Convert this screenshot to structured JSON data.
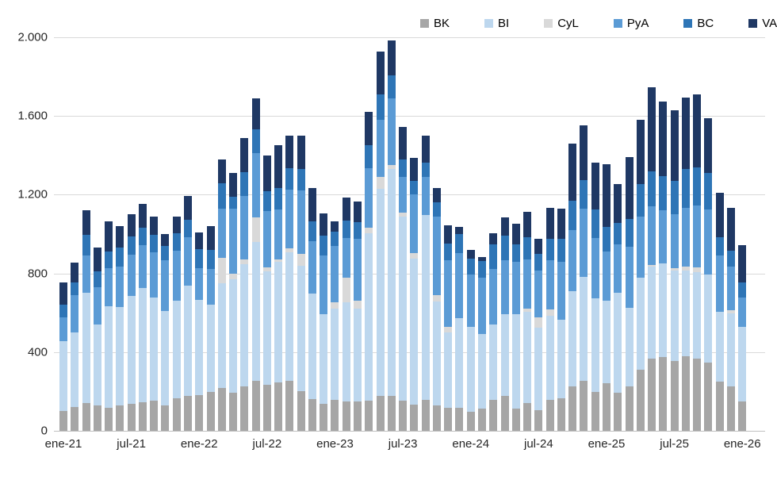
{
  "legend": {
    "items": [
      {
        "label": "BK",
        "color": "#a6a6a6"
      },
      {
        "label": "BI",
        "color": "#bdd7ee"
      },
      {
        "label": "CyL",
        "color": "#d9d9d9"
      },
      {
        "label": "PyA",
        "color": "#5b9bd5"
      },
      {
        "label": "BC",
        "color": "#2e75b6"
      },
      {
        "label": "VA",
        "color": "#1f3864"
      }
    ]
  },
  "y_axis": {
    "tick_labels": [
      "0",
      "400",
      "800",
      "1.200",
      "1.600",
      "2.000"
    ],
    "tick_values": [
      0,
      400,
      800,
      1200,
      1600,
      2000
    ]
  },
  "x_axis": {
    "tick_every": 6,
    "tick_labels": [
      "ene-21",
      "jul-21",
      "ene-22",
      "jul-22",
      "ene-23",
      "jul-23",
      "ene-24",
      "jul-24",
      "ene-25",
      "jul-25",
      "ene-26"
    ]
  },
  "chart_data": {
    "type": "bar",
    "stacked": true,
    "title": "",
    "xlabel": "",
    "ylabel": "",
    "ylim": [
      0,
      2000
    ],
    "grid": true,
    "legend_position": "top",
    "categories": [
      "ene-21",
      "feb-21",
      "mar-21",
      "abr-21",
      "may-21",
      "jun-21",
      "jul-21",
      "ago-21",
      "sep-21",
      "oct-21",
      "nov-21",
      "dic-21",
      "ene-22",
      "feb-22",
      "mar-22",
      "abr-22",
      "may-22",
      "jun-22",
      "jul-22",
      "ago-22",
      "sep-22",
      "oct-22",
      "nov-22",
      "dic-22",
      "ene-23",
      "feb-23",
      "mar-23",
      "abr-23",
      "may-23",
      "jun-23",
      "jul-23",
      "ago-23",
      "sep-23",
      "oct-23",
      "nov-23",
      "dic-23",
      "ene-24",
      "feb-24",
      "mar-24",
      "abr-24",
      "may-24",
      "jun-24",
      "jul-24",
      "ago-24",
      "sep-24",
      "oct-24",
      "nov-24",
      "dic-24",
      "ene-25",
      "feb-25",
      "mar-25",
      "abr-25",
      "may-25",
      "jun-25",
      "jul-25",
      "ago-25",
      "sep-25",
      "oct-25",
      "nov-25",
      "dic-25",
      "ene-26"
    ],
    "series": [
      {
        "name": "BK",
        "color": "#a6a6a6",
        "values": [
          100,
          120,
          142,
          131,
          117,
          131,
          138,
          145,
          152,
          131,
          165,
          179,
          181,
          199,
          219,
          192,
          226,
          253,
          233,
          246,
          253,
          200,
          163,
          136,
          156,
          150,
          150,
          155,
          179,
          179,
          152,
          134,
          158,
          131,
          117,
          118,
          95,
          113,
          156,
          176,
          113,
          142,
          104,
          156,
          165,
          226,
          253,
          199,
          240,
          192,
          226,
          310,
          367,
          374,
          354,
          381,
          367,
          347,
          252,
          225,
          151
        ]
      },
      {
        "name": "BI",
        "color": "#bdd7ee",
        "values": [
          355,
          382,
          560,
          410,
          516,
          498,
          546,
          580,
          525,
          478,
          498,
          559,
          483,
          441,
          531,
          578,
          619,
          708,
          578,
          613,
          653,
          640,
          535,
          458,
          465,
          505,
          471,
          850,
          1049,
          1152,
          938,
          741,
          939,
          526,
          383,
          456,
          434,
          380,
          386,
          417,
          480,
          464,
          421,
          430,
          401,
          483,
          531,
          476,
          421,
          510,
          401,
          470,
          468,
          475,
          461,
          434,
          441,
          448,
          353,
          373,
          379
        ]
      },
      {
        "name": "CyL",
        "color": "#d9d9d9",
        "values": [
          0,
          0,
          0,
          0,
          0,
          0,
          0,
          0,
          0,
          0,
          0,
          0,
          0,
          0,
          129,
          27,
          27,
          122,
          20,
          14,
          20,
          60,
          0,
          0,
          34,
          125,
          40,
          27,
          62,
          21,
          20,
          27,
          0,
          34,
          27,
          0,
          0,
          0,
          0,
          0,
          0,
          15,
          51,
          30,
          0,
          0,
          0,
          0,
          0,
          0,
          0,
          0,
          7,
          0,
          13,
          20,
          21,
          0,
          0,
          14,
          0
        ]
      },
      {
        "name": "PyA",
        "color": "#5b9bd5",
        "values": [
          121,
          188,
          190,
          187,
          194,
          205,
          211,
          218,
          232,
          260,
          253,
          246,
          163,
          181,
          252,
          334,
          320,
          327,
          285,
          252,
          300,
          320,
          267,
          296,
          283,
          198,
          317,
          303,
          289,
          338,
          180,
          298,
          193,
          399,
          341,
          330,
          264,
          285,
          281,
          275,
          268,
          251,
          238,
          251,
          293,
          313,
          347,
          306,
          252,
          245,
          307,
          310,
          298,
          271,
          272,
          299,
          318,
          332,
          285,
          223,
          149
        ]
      },
      {
        "name": "BC",
        "color": "#2e75b6",
        "values": [
          66,
          65,
          105,
          82,
          85,
          96,
          93,
          89,
          89,
          71,
          88,
          89,
          96,
          99,
          129,
          60,
          123,
          123,
          102,
          109,
          110,
          110,
          101,
          101,
          74,
          90,
          81,
          115,
          131,
          117,
          90,
          69,
          75,
          70,
          82,
          95,
          82,
          85,
          126,
          126,
          88,
          111,
          85,
          109,
          116,
          146,
          143,
          143,
          123,
          109,
          143,
          165,
          177,
          176,
          169,
          196,
          190,
          183,
          94,
          82,
          75
        ]
      },
      {
        "name": "VA",
        "color": "#1f3864",
        "values": [
          113,
          100,
          123,
          120,
          153,
          110,
          112,
          123,
          92,
          60,
          84,
          120,
          87,
          120,
          120,
          119,
          175,
          157,
          182,
          216,
          164,
          170,
          168,
          115,
          54,
          119,
          105,
          170,
          217,
          179,
          165,
          117,
          134,
          75,
          95,
          36,
          45,
          22,
          57,
          91,
          105,
          129,
          77,
          157,
          156,
          292,
          279,
          238,
          317,
          197,
          313,
          325,
          428,
          379,
          361,
          365,
          373,
          280,
          226,
          218,
          191
        ]
      }
    ]
  }
}
